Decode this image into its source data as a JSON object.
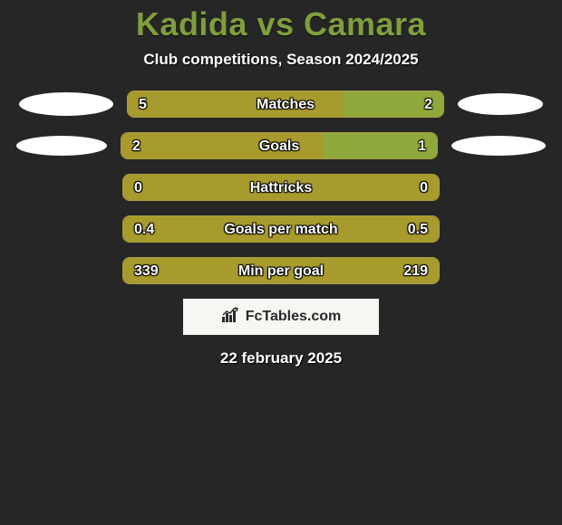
{
  "title": "Kadida vs Camara",
  "subtitle": "Club competitions, Season 2024/2025",
  "date": "22 february 2025",
  "brand": "FcTables.com",
  "colors": {
    "bg": "#262626",
    "title": "#7f9e3e",
    "bar_left": "#a89b2d",
    "bar_right": "#90a93c",
    "bar_border": "#a9a03f",
    "pill": "#ffffff",
    "brand_bg": "#f5f7f2",
    "brand_text": "#2a2a2a"
  },
  "pill_sizes": {
    "row0": {
      "l_w": 104,
      "l_h": 26,
      "r_w": 94,
      "r_h": 24
    },
    "row1": {
      "l_w": 100,
      "l_h": 22,
      "r_w": 104,
      "r_h": 22
    }
  },
  "rows": [
    {
      "label": "Matches",
      "left_val": "5",
      "right_val": "2",
      "left_pct": 68,
      "right_pct": 32,
      "show_pills": true,
      "pill_key": "row0"
    },
    {
      "label": "Goals",
      "left_val": "2",
      "right_val": "1",
      "left_pct": 64,
      "right_pct": 36,
      "show_pills": true,
      "pill_key": "row1"
    },
    {
      "label": "Hattricks",
      "left_val": "0",
      "right_val": "0",
      "left_pct": 100,
      "right_pct": 0,
      "show_pills": false,
      "pill_key": null
    },
    {
      "label": "Goals per match",
      "left_val": "0.4",
      "right_val": "0.5",
      "left_pct": 100,
      "right_pct": 0,
      "show_pills": false,
      "pill_key": null
    },
    {
      "label": "Min per goal",
      "left_val": "339",
      "right_val": "219",
      "left_pct": 100,
      "right_pct": 0,
      "show_pills": false,
      "pill_key": null
    }
  ]
}
